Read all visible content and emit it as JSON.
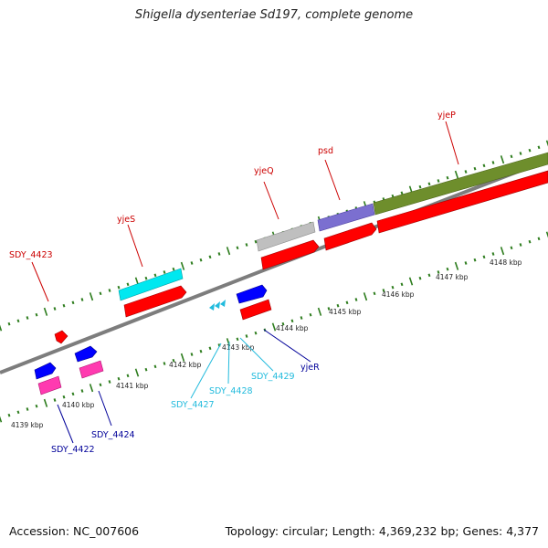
{
  "title": "Shigella dysenteriae Sd197, complete genome",
  "footer": {
    "accession": "Accession: NC_007606",
    "summary": "Topology: circular; Length: 4,369,232 bp; Genes: 4,377"
  },
  "colors": {
    "cds_forward": "#ff0000",
    "cds_reverse": "#0000ff",
    "pink": "#ff3ab0",
    "cyan": "#00e8f0",
    "gray": "#bfbfbf",
    "purple": "#7b6fd0",
    "olive": "#6e8e2c",
    "label_red": "#cc0000",
    "label_blue": "#000099",
    "label_cyan": "#22bbdd",
    "tick": "#2e7d1e"
  },
  "kbp_labels": [
    "4139 kbp",
    "4140 kbp",
    "4141 kbp",
    "4142 kbp",
    "4143 kbp",
    "4144 kbp",
    "4145 kbp",
    "4146 kbp",
    "4147 kbp",
    "4148 kbp"
  ],
  "gene_labels": {
    "SDY_4423": "SDY_4423",
    "yjeS": "yjeS",
    "yjeQ": "yjeQ",
    "psd": "psd",
    "yjeP": "yjeP",
    "yjeR": "yjeR",
    "SDY_4429": "SDY_4429",
    "SDY_4428": "SDY_4428",
    "SDY_4427": "SDY_4427",
    "SDY_4424": "SDY_4424",
    "SDY_4422": "SDY_4422"
  }
}
